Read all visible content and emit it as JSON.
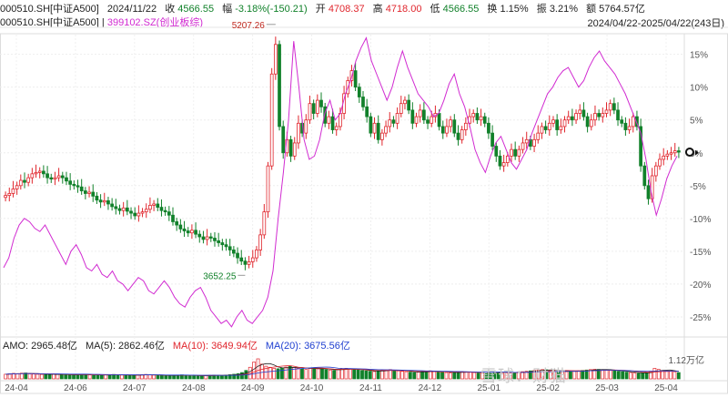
{
  "header": {
    "code": "000510.SH[中证A500]",
    "date": "2024/11/22",
    "close_label": "收",
    "close": "4566.55",
    "change_label": "幅",
    "change": "-3.18%(-150.21)",
    "open_label": "开",
    "open": "4708.37",
    "high_label": "高",
    "high": "4718.00",
    "low_label": "低",
    "low": "4566.55",
    "turnover_label": "换",
    "turnover": "1.15%",
    "amplitude_label": "振",
    "amplitude": "3.21%",
    "amount_label": "额",
    "amount": "5764.57亿",
    "code_line": "000510.SH[中证A500]",
    "compare": "399102.SZ(创业板综)",
    "range": "2024/04/22-2025/04/22(243日)"
  },
  "volume": {
    "amo": "AMO: 2965.48亿",
    "ma5": "MA(5): 2862.46亿",
    "ma10": "MA(10): 3649.94亿",
    "ma20": "MA(20): 3675.56亿",
    "max_label": "1.12万亿"
  },
  "watermark": "雪球：财猫",
  "colors": {
    "up": "#e0262d",
    "down": "#11812a",
    "compare": "#d12bd1",
    "ma10": "#e0262d",
    "ma20": "#1f3fd0",
    "ma5": "#222222"
  },
  "chart_data": {
    "type": "candlestick",
    "x_labels": [
      "24-04",
      "24-06",
      "24-07",
      "24-08",
      "24-09",
      "24-10",
      "24-11",
      "24-12",
      "25-01",
      "25-02",
      "25-03",
      "25-04"
    ],
    "y_ticks": [
      "15%",
      "10%",
      "5%",
      "0%",
      "-5%",
      "-10%",
      "-15%",
      "-20%",
      "-25%"
    ],
    "y_range_pct": [
      -27.5,
      18
    ],
    "annotations": {
      "high": "5207.26",
      "low": "3652.25"
    },
    "grid": true,
    "series": [
      {
        "name": "000510.SH[中证A500]",
        "kind": "candles",
        "values_pct": [
          -6.5,
          -6.2,
          -5.5,
          -5.0,
          -4.2,
          -4.5,
          -3.8,
          -3.2,
          -3.0,
          -2.8,
          -3.2,
          -3.8,
          -4.0,
          -3.8,
          -3.5,
          -3.8,
          -4.3,
          -4.8,
          -5.0,
          -5.2,
          -5.8,
          -6.2,
          -6.0,
          -6.6,
          -7.2,
          -7.5,
          -7.3,
          -7.8,
          -8.2,
          -8.5,
          -8.8,
          -8.4,
          -8.9,
          -9.2,
          -9.6,
          -9.2,
          -9.0,
          -8.6,
          -8.0,
          -7.8,
          -8.3,
          -8.8,
          -9.0,
          -9.5,
          -10.5,
          -11.0,
          -11.6,
          -11.9,
          -12.2,
          -11.8,
          -12.4,
          -12.8,
          -13.2,
          -12.8,
          -13.0,
          -13.4,
          -13.7,
          -14.0,
          -14.3,
          -14.8,
          -15.3,
          -16.0,
          -16.5,
          -17.0,
          -16.6,
          -16.0,
          -14.8,
          -12.5,
          -9.0,
          -2.0,
          12.0,
          16.5,
          4.0,
          0.0,
          2.0,
          -0.5,
          1.5,
          4.5,
          3.0,
          5.0,
          7.5,
          6.0,
          8.0,
          7.0,
          4.5,
          5.5,
          3.5,
          4.0,
          6.0,
          9.0,
          11.0,
          12.5,
          10.0,
          8.5,
          7.0,
          5.5,
          3.0,
          4.5,
          2.0,
          3.0,
          4.0,
          5.0,
          4.5,
          6.0,
          7.5,
          8.0,
          6.5,
          4.5,
          5.5,
          6.5,
          5.0,
          4.5,
          5.5,
          6.0,
          4.0,
          3.0,
          4.0,
          5.0,
          3.0,
          2.0,
          3.5,
          4.5,
          5.5,
          6.0,
          5.0,
          5.5,
          4.5,
          3.0,
          1.0,
          -0.5,
          -2.0,
          -1.5,
          -0.5,
          0.5,
          -0.5,
          0.5,
          1.5,
          2.0,
          1.0,
          2.0,
          3.0,
          4.0,
          3.5,
          4.5,
          5.0,
          3.5,
          4.0,
          5.0,
          5.5,
          5.0,
          6.0,
          6.5,
          5.5,
          4.0,
          5.0,
          6.0,
          5.5,
          6.0,
          6.5,
          7.5,
          6.5,
          5.0,
          4.5,
          3.5,
          4.0,
          5.5,
          4.0,
          -2.0,
          -5.0,
          -7.0,
          -3.5,
          -2.0,
          -1.0,
          -0.5,
          -0.2,
          0.0,
          0.3,
          0.1
        ]
      },
      {
        "name": "399102.SZ(创业板综)",
        "kind": "line",
        "values_pct": [
          -17.5,
          -16.0,
          -13.0,
          -11.0,
          -10.0,
          -10.5,
          -11.5,
          -12.0,
          -11.0,
          -12.5,
          -14.0,
          -15.5,
          -17.0,
          -15.0,
          -14.0,
          -15.5,
          -17.5,
          -18.0,
          -17.0,
          -18.5,
          -19.0,
          -18.0,
          -19.5,
          -20.0,
          -21.0,
          -20.0,
          -19.0,
          -19.5,
          -21.0,
          -21.5,
          -20.5,
          -19.5,
          -20.5,
          -22.0,
          -23.0,
          -23.5,
          -22.0,
          -21.0,
          -20.5,
          -22.0,
          -24.0,
          -25.0,
          -26.0,
          -25.5,
          -26.5,
          -25.0,
          -24.0,
          -25.5,
          -26.0,
          -25.0,
          -24.0,
          -22.0,
          -18.0,
          -10.0,
          -3.0,
          5.0,
          17.0,
          10.0,
          2.0,
          -1.0,
          -0.5,
          2.0,
          6.0,
          8.0,
          5.0,
          6.0,
          9.0,
          11.0,
          14.0,
          16.0,
          17.5,
          14.0,
          12.0,
          10.0,
          8.0,
          10.0,
          13.0,
          15.5,
          13.0,
          11.0,
          9.0,
          8.0,
          7.0,
          5.5,
          6.0,
          8.0,
          10.5,
          12.0,
          9.0,
          7.0,
          4.0,
          0.5,
          -1.5,
          -3.0,
          -0.5,
          1.5,
          2.5,
          0.5,
          -1.5,
          -2.5,
          -1.0,
          0.5,
          3.0,
          5.0,
          7.0,
          9.0,
          10.0,
          11.5,
          12.5,
          13.0,
          11.5,
          10.0,
          11.0,
          13.0,
          14.5,
          15.5,
          14.0,
          13.0,
          12.0,
          10.5,
          9.0,
          7.0,
          5.0,
          3.0,
          -1.0,
          -6.0,
          -9.5,
          -7.0,
          -4.0,
          -2.0,
          -0.5
        ]
      }
    ],
    "volume_bars": [
      22,
      24,
      26,
      25,
      27,
      28,
      24,
      23,
      22,
      21,
      20,
      22,
      23,
      21,
      20,
      19,
      18,
      20,
      21,
      22,
      20,
      19,
      18,
      17,
      18,
      19,
      20,
      21,
      20,
      18,
      17,
      16,
      18,
      19,
      20,
      21,
      19,
      18,
      17,
      16,
      15,
      16,
      17,
      18,
      19,
      17,
      16,
      15,
      14,
      15,
      16,
      17,
      18,
      17,
      16,
      18,
      20,
      22,
      25,
      30,
      40,
      55,
      80,
      95,
      70,
      60,
      55,
      50,
      48,
      52,
      56,
      60,
      55,
      50,
      48,
      45,
      50,
      52,
      48,
      46,
      44,
      42,
      40,
      45,
      48,
      50,
      46,
      44,
      42,
      40,
      38,
      36,
      35,
      38,
      40,
      42,
      44,
      40,
      38,
      36,
      34,
      32,
      30,
      32,
      34,
      36,
      38,
      36,
      34,
      32,
      30,
      28,
      30,
      32,
      34,
      33,
      31,
      30,
      28,
      29,
      30,
      32,
      33,
      31,
      30,
      29,
      28,
      30,
      32,
      34,
      36,
      38,
      40,
      42,
      44,
      43,
      42,
      40,
      38,
      36,
      34,
      35,
      36,
      38,
      40,
      42,
      44,
      46,
      45,
      44,
      42,
      40,
      38,
      36,
      34,
      32,
      30,
      28,
      26,
      28,
      30,
      35,
      50,
      45,
      40,
      38,
      36,
      34,
      30
    ],
    "volume_max": "1.12万亿"
  }
}
